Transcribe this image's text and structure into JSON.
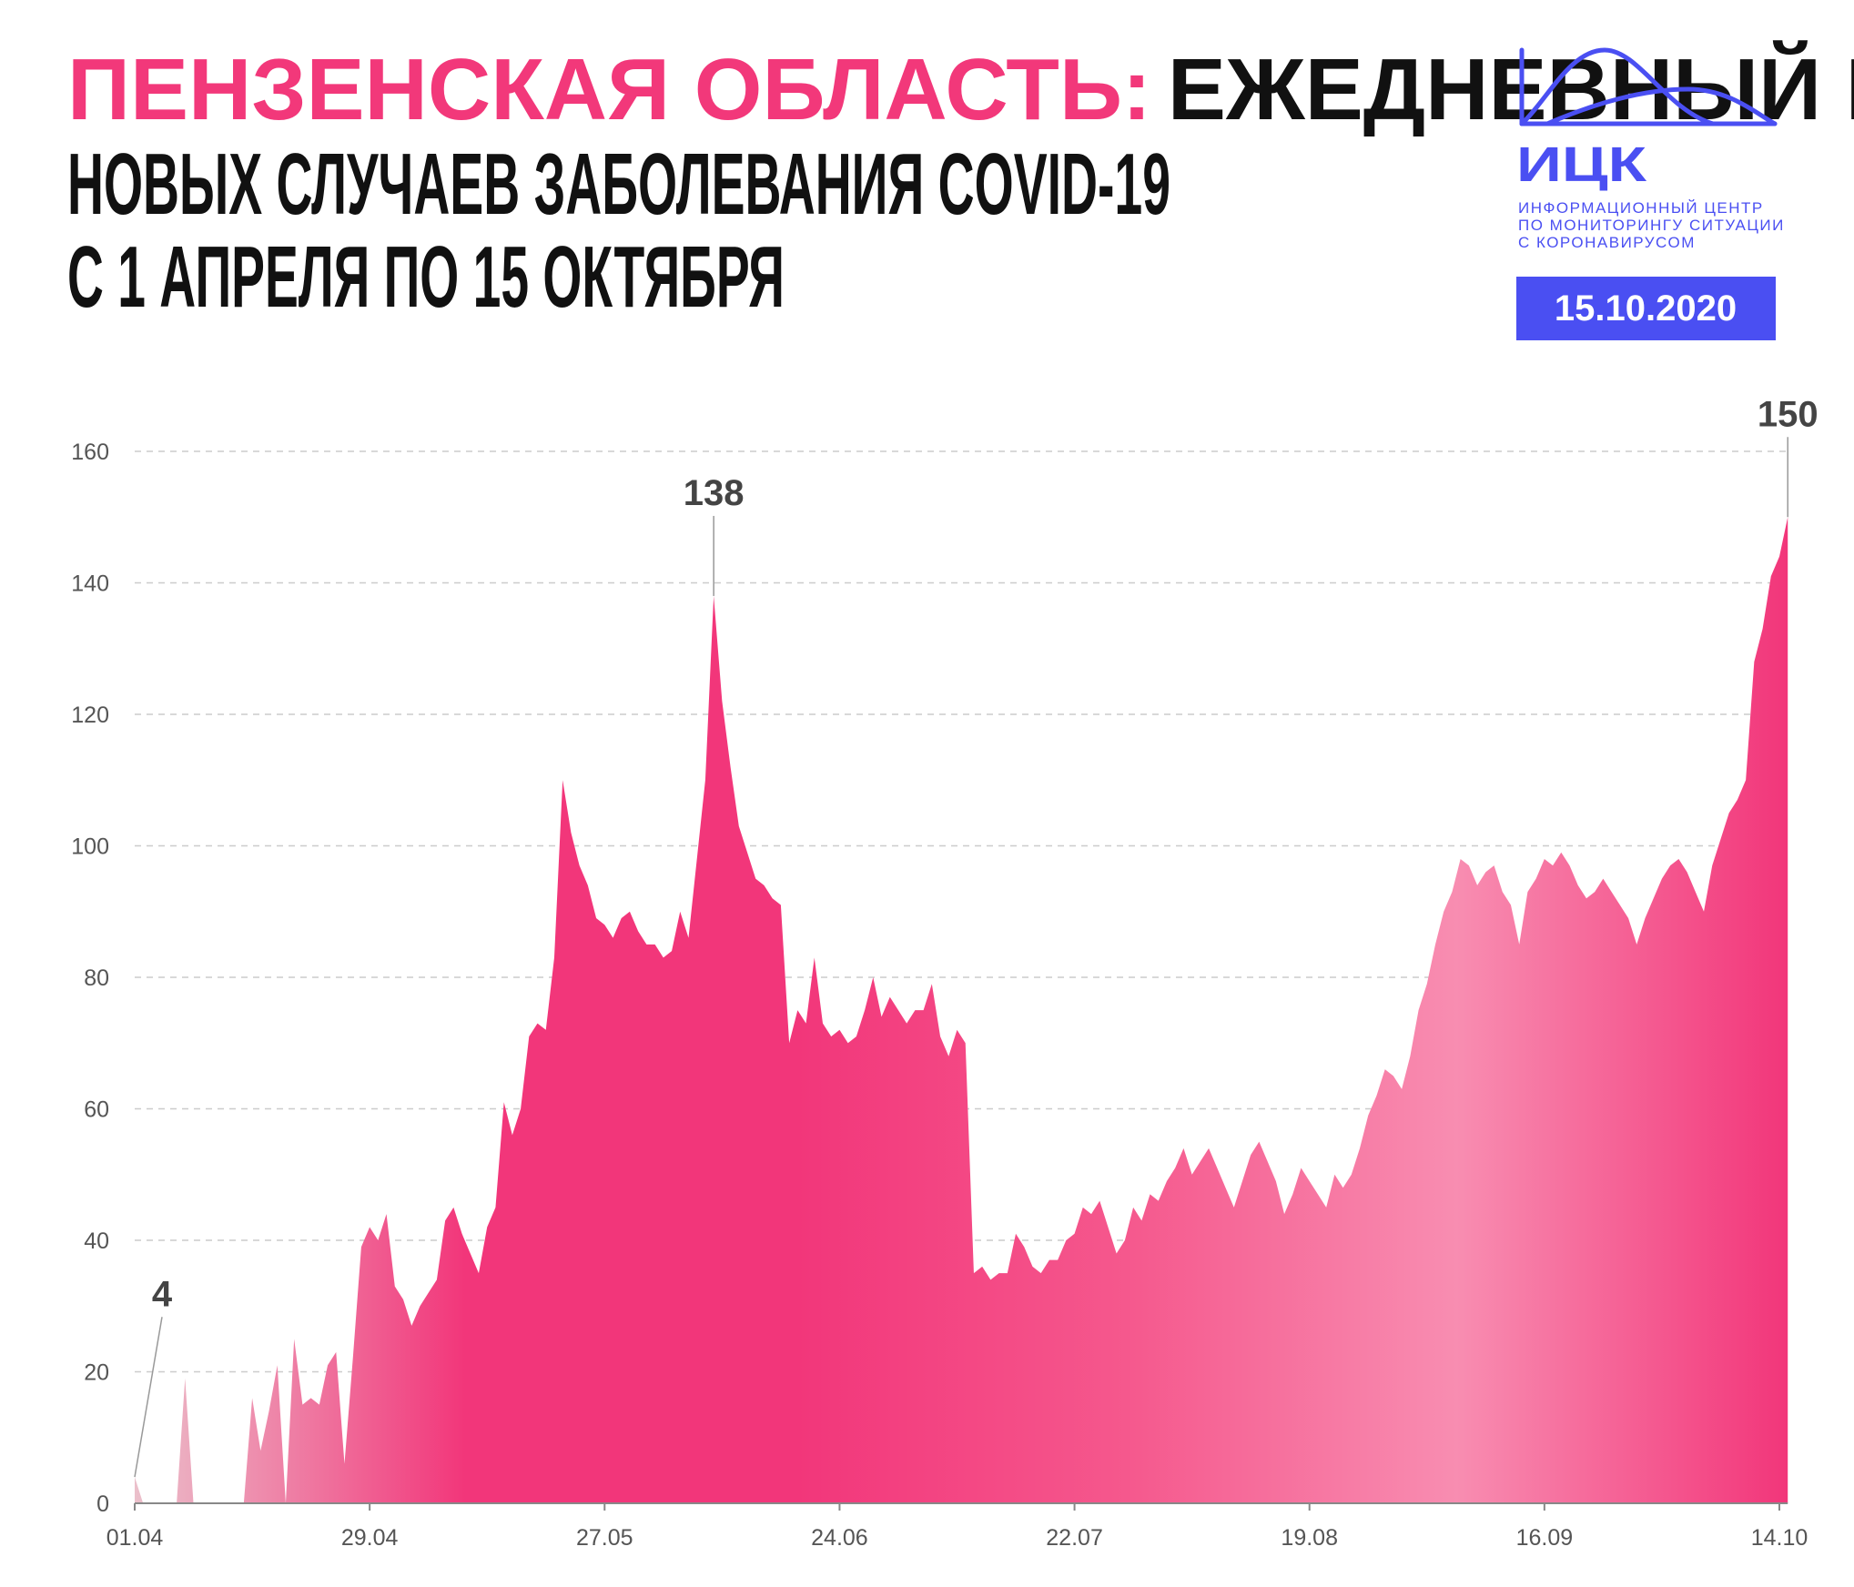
{
  "chart_data": {
    "type": "area",
    "region": "ПЕНЗЕНСКАЯ ОБЛАСТЬ:",
    "title": [
      "ЕЖЕДНЕВНЫЙ ПРИРОСТ",
      "НОВЫХ СЛУЧАЕВ ЗАБОЛЕВАНИЯ COVID-19",
      "С 1 АПРЕЛЯ ПО 15 ОКТЯБРЯ"
    ],
    "accent_color": "#f2387a",
    "logo": {
      "abbr": "ИЦК",
      "lines": [
        "ИНФОРМАЦИОННЫЙ ЦЕНТР",
        "ПО МОНИТОРИНГУ СИТУАЦИИ",
        "С КОРОНАВИРУСОМ"
      ],
      "color": "#4a4ff2"
    },
    "date": "15.10.2020",
    "categories": [
      "01.04",
      null,
      null,
      null,
      null,
      null,
      null,
      null,
      null,
      null,
      null,
      null,
      null,
      null,
      null,
      null,
      null,
      null,
      null,
      null,
      null,
      null,
      null,
      null,
      null,
      null,
      null,
      null,
      "29.04",
      null,
      null,
      null,
      null,
      null,
      null,
      null,
      null,
      null,
      null,
      null,
      null,
      null,
      null,
      null,
      null,
      null,
      null,
      null,
      null,
      null,
      null,
      null,
      null,
      null,
      null,
      null,
      "27.05",
      null,
      null,
      null,
      null,
      null,
      null,
      null,
      null,
      null,
      null,
      null,
      null,
      null,
      null,
      null,
      null,
      null,
      null,
      null,
      null,
      null,
      null,
      null,
      null,
      null,
      null,
      null,
      "24.06",
      null,
      null,
      null,
      null,
      null,
      null,
      null,
      null,
      null,
      null,
      null,
      null,
      null,
      null,
      null,
      null,
      null,
      null,
      null,
      null,
      null,
      null,
      null,
      null,
      null,
      null,
      null,
      "22.07",
      null,
      null,
      null,
      null,
      null,
      null,
      null,
      null,
      null,
      null,
      null,
      null,
      null,
      null,
      null,
      null,
      null,
      null,
      null,
      null,
      null,
      null,
      null,
      null,
      null,
      null,
      null,
      "19.08",
      null,
      null,
      null,
      null,
      null,
      null,
      null,
      null,
      null,
      null,
      null,
      null,
      null,
      null,
      null,
      null,
      null,
      null,
      null,
      null,
      null,
      null,
      null,
      null,
      null,
      null,
      null,
      "16.09",
      null,
      null,
      null,
      null,
      null,
      null,
      null,
      null,
      null,
      null,
      null,
      null,
      null,
      null,
      null,
      null,
      null,
      null,
      null,
      null,
      null,
      null,
      null,
      null,
      null,
      null,
      null,
      "14.10",
      null
    ],
    "values": [
      4,
      0,
      0,
      0,
      0,
      0,
      19,
      0,
      0,
      0,
      0,
      0,
      0,
      0,
      16,
      8,
      14,
      21,
      0,
      25,
      15,
      16,
      15,
      21,
      23,
      6,
      22,
      39,
      42,
      40,
      44,
      33,
      31,
      27,
      30,
      32,
      34,
      43,
      45,
      41,
      38,
      35,
      42,
      45,
      61,
      56,
      60,
      71,
      73,
      72,
      83,
      110,
      102,
      97,
      94,
      89,
      88,
      86,
      89,
      90,
      87,
      85,
      85,
      83,
      84,
      90,
      86,
      98,
      110,
      138,
      122,
      112,
      103,
      99,
      95,
      94,
      92,
      91,
      70,
      75,
      73,
      83,
      73,
      71,
      72,
      70,
      71,
      75,
      80,
      74,
      77,
      75,
      73,
      75,
      75,
      79,
      71,
      68,
      72,
      70,
      35,
      36,
      34,
      35,
      35,
      41,
      39,
      36,
      35,
      37,
      37,
      40,
      41,
      45,
      44,
      46,
      42,
      38,
      40,
      45,
      43,
      47,
      46,
      49,
      51,
      54,
      50,
      52,
      54,
      51,
      48,
      45,
      49,
      53,
      55,
      52,
      49,
      44,
      47,
      51,
      49,
      47,
      45,
      50,
      48,
      50,
      54,
      59,
      62,
      66,
      65,
      63,
      68,
      75,
      79,
      85,
      90,
      93,
      98,
      97,
      94,
      96,
      97,
      93,
      91,
      85,
      93,
      95,
      98,
      97,
      99,
      97,
      94,
      92,
      93,
      95,
      93,
      91,
      89,
      85,
      89,
      92,
      95,
      97,
      98,
      96,
      93,
      90,
      97,
      101,
      105,
      107,
      110,
      128,
      133,
      141,
      144,
      150
    ],
    "value_labels": [
      "4",
      null,
      null,
      null,
      null,
      null,
      null,
      null,
      null,
      null,
      null,
      null,
      null,
      null,
      null,
      null,
      null,
      null,
      null,
      null,
      null,
      null,
      null,
      null,
      null,
      null,
      null,
      null,
      null,
      null,
      null,
      null,
      null,
      null,
      null,
      null,
      null,
      null,
      null,
      null,
      null,
      null,
      null,
      null,
      null,
      null,
      null,
      null,
      null,
      null,
      null,
      null,
      null,
      null,
      null,
      null,
      null,
      null,
      null,
      null,
      null,
      null,
      null,
      null,
      null,
      null,
      null,
      null,
      null,
      "138",
      null,
      null,
      null,
      null,
      null,
      null,
      null,
      null,
      null,
      null,
      null,
      null,
      null,
      null,
      null,
      null,
      null,
      null,
      null,
      null,
      null,
      null,
      null,
      null,
      null,
      null,
      null,
      null,
      null,
      null,
      null,
      null,
      null,
      null,
      null,
      null,
      null,
      null,
      null,
      null,
      null,
      null,
      null,
      null,
      null,
      null,
      null,
      null,
      null,
      null,
      null,
      null,
      null,
      null,
      null,
      null,
      null,
      null,
      null,
      null,
      null,
      null,
      null,
      null,
      null,
      null,
      null,
      null,
      null,
      null,
      null,
      null,
      null,
      null,
      null,
      null,
      null,
      null,
      null,
      null,
      null,
      null,
      null,
      null,
      null,
      null,
      null,
      null,
      null,
      null,
      null,
      null,
      null,
      null,
      null,
      null,
      null,
      null,
      null,
      null,
      null,
      null,
      null,
      null,
      null,
      null,
      null,
      null,
      null,
      null,
      null,
      null,
      null,
      null,
      null,
      null,
      null,
      null,
      null,
      null,
      null,
      null,
      null,
      null,
      null,
      null,
      null,
      "150"
    ],
    "colors": [
      "#ebc0cb",
      "#f2367a",
      "#f2367a",
      "#f5588d",
      "#f88db1",
      "#f2367a"
    ],
    "ylim": [
      0,
      160
    ],
    "yticks": [
      0,
      20,
      40,
      60,
      80,
      100,
      120,
      140,
      160
    ],
    "grid": true
  }
}
